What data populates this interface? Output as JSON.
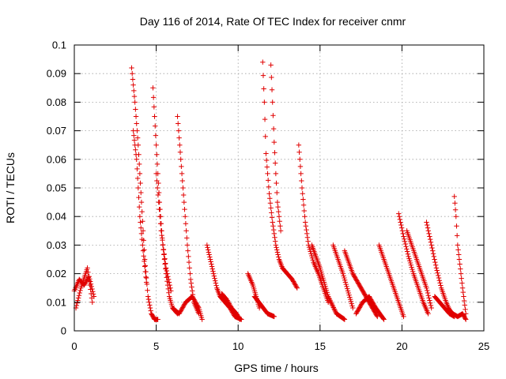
{
  "chart_data": {
    "type": "scatter",
    "title": "Day 116 of 2014, Rate Of TEC Index for receiver cnmr",
    "xlabel": "GPS time / hours",
    "ylabel": "ROTI / TECUs",
    "xlim": [
      0,
      25
    ],
    "ylim": [
      0,
      0.1
    ],
    "x_ticks": [
      "0",
      "5",
      "10",
      "15",
      "20",
      "25"
    ],
    "y_ticks": [
      "0",
      "0.01",
      "0.02",
      "0.03",
      "0.04",
      "0.05",
      "0.06",
      "0.07",
      "0.08",
      "0.09",
      "0.1"
    ],
    "grid": true,
    "marker": "plus",
    "color": "#e00000",
    "tracks": [
      {
        "x": [
          0.0,
          0.3,
          0.6,
          0.9,
          1.2
        ],
        "y": [
          0.014,
          0.018,
          0.016,
          0.019,
          0.012
        ]
      },
      {
        "x": [
          0.1,
          0.4,
          0.8,
          1.1
        ],
        "y": [
          0.008,
          0.015,
          0.022,
          0.01
        ]
      },
      {
        "x": [
          3.5,
          3.7,
          3.9,
          4.1,
          4.3,
          4.5,
          4.7,
          4.9,
          5.1
        ],
        "y": [
          0.092,
          0.08,
          0.065,
          0.045,
          0.025,
          0.012,
          0.006,
          0.004,
          0.004
        ]
      },
      {
        "x": [
          3.6,
          3.8,
          4.0,
          4.2,
          4.4
        ],
        "y": [
          0.07,
          0.06,
          0.04,
          0.028,
          0.017
        ]
      },
      {
        "x": [
          4.8,
          5.0,
          5.2,
          5.4,
          5.6,
          5.8,
          6.0,
          6.3
        ],
        "y": [
          0.085,
          0.065,
          0.045,
          0.03,
          0.02,
          0.012,
          0.008,
          0.006
        ]
      },
      {
        "x": [
          5.0,
          5.3,
          5.6,
          5.9
        ],
        "y": [
          0.055,
          0.035,
          0.022,
          0.014
        ]
      },
      {
        "x": [
          6.3,
          6.5,
          6.7,
          6.9,
          7.1,
          7.3,
          7.6
        ],
        "y": [
          0.075,
          0.06,
          0.045,
          0.03,
          0.018,
          0.01,
          0.006
        ]
      },
      {
        "x": [
          6.0,
          6.4,
          6.8,
          7.2,
          7.6,
          7.8
        ],
        "y": [
          0.008,
          0.006,
          0.01,
          0.012,
          0.008,
          0.004
        ]
      },
      {
        "x": [
          8.1,
          8.3,
          8.5,
          8.7,
          8.9,
          9.2,
          9.5,
          9.8,
          10.2
        ],
        "y": [
          0.03,
          0.025,
          0.02,
          0.015,
          0.012,
          0.01,
          0.008,
          0.005,
          0.004
        ]
      },
      {
        "x": [
          9.0,
          9.3,
          9.6,
          9.9,
          10.1
        ],
        "y": [
          0.013,
          0.011,
          0.008,
          0.006,
          0.004
        ]
      },
      {
        "x": [
          10.6,
          10.9,
          11.1,
          11.3
        ],
        "y": [
          0.02,
          0.016,
          0.012,
          0.008
        ]
      },
      {
        "x": [
          11.5,
          11.6,
          11.7,
          11.9,
          12.1,
          12.3,
          12.5,
          12.7,
          13.0,
          13.3,
          13.6
        ],
        "y": [
          0.094,
          0.08,
          0.062,
          0.048,
          0.038,
          0.03,
          0.025,
          0.022,
          0.02,
          0.018,
          0.015
        ]
      },
      {
        "x": [
          12.0,
          12.1,
          12.2,
          12.3,
          12.4,
          12.6
        ],
        "y": [
          0.093,
          0.08,
          0.066,
          0.055,
          0.045,
          0.035
        ]
      },
      {
        "x": [
          11.0,
          11.4,
          11.8,
          12.2
        ],
        "y": [
          0.012,
          0.009,
          0.006,
          0.005
        ]
      },
      {
        "x": [
          13.7,
          13.9,
          14.1,
          14.3,
          14.6,
          14.9,
          15.2,
          15.5
        ],
        "y": [
          0.065,
          0.05,
          0.038,
          0.03,
          0.024,
          0.02,
          0.015,
          0.01
        ]
      },
      {
        "x": [
          14.5,
          15.0,
          15.5,
          16.0,
          16.5
        ],
        "y": [
          0.03,
          0.022,
          0.012,
          0.006,
          0.004
        ]
      },
      {
        "x": [
          15.8,
          16.1,
          16.4,
          16.7,
          17.0
        ],
        "y": [
          0.03,
          0.025,
          0.02,
          0.014,
          0.008
        ]
      },
      {
        "x": [
          16.5,
          17.0,
          17.5,
          18.0,
          18.5
        ],
        "y": [
          0.028,
          0.02,
          0.015,
          0.01,
          0.005
        ]
      },
      {
        "x": [
          17.2,
          17.6,
          18.0,
          18.4,
          18.9
        ],
        "y": [
          0.006,
          0.01,
          0.012,
          0.008,
          0.004
        ]
      },
      {
        "x": [
          18.6,
          18.9,
          19.2,
          19.5,
          19.8,
          20.1
        ],
        "y": [
          0.03,
          0.025,
          0.02,
          0.015,
          0.01,
          0.005
        ]
      },
      {
        "x": [
          19.8,
          20.1,
          20.4,
          20.7,
          21.0,
          21.3,
          21.6
        ],
        "y": [
          0.041,
          0.033,
          0.026,
          0.02,
          0.015,
          0.01,
          0.006
        ]
      },
      {
        "x": [
          20.3,
          20.6,
          20.9,
          21.2,
          21.5,
          21.8
        ],
        "y": [
          0.035,
          0.03,
          0.025,
          0.02,
          0.015,
          0.008
        ]
      },
      {
        "x": [
          21.5,
          21.8,
          22.1,
          22.4,
          22.7,
          23.0
        ],
        "y": [
          0.038,
          0.03,
          0.022,
          0.015,
          0.01,
          0.006
        ]
      },
      {
        "x": [
          22.0,
          22.3,
          22.6,
          22.9,
          23.2
        ],
        "y": [
          0.012,
          0.01,
          0.008,
          0.006,
          0.005
        ]
      },
      {
        "x": [
          23.2,
          23.3,
          23.4,
          23.5,
          23.7,
          23.9
        ],
        "y": [
          0.047,
          0.04,
          0.03,
          0.025,
          0.015,
          0.006
        ]
      },
      {
        "x": [
          22.8,
          23.1,
          23.4,
          23.7,
          23.9
        ],
        "y": [
          0.008,
          0.006,
          0.005,
          0.006,
          0.004
        ]
      }
    ]
  }
}
